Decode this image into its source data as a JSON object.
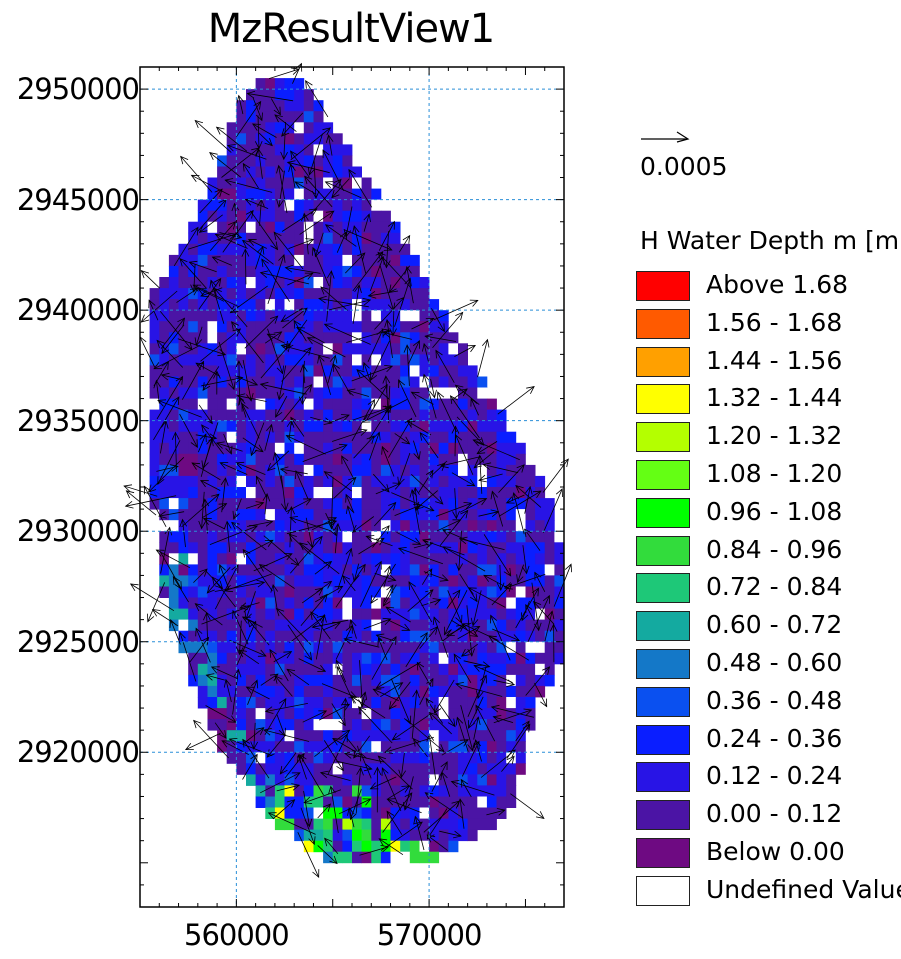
{
  "chart_data": {
    "type": "heatmap",
    "title": "MzResultView1",
    "xlabel": "",
    "ylabel": "",
    "xlim": [
      555000,
      577000
    ],
    "ylim": [
      2913000,
      2951000
    ],
    "x_ticks": [
      "560000",
      "570000"
    ],
    "y_ticks": [
      "2950000",
      "2945000",
      "2940000",
      "2935000",
      "2930000",
      "2925000",
      "2920000"
    ],
    "grid": true,
    "vector_scale_label": "0.0005",
    "legend_title": "H Water Depth m [m]",
    "legend_placement": "right",
    "legend": [
      {
        "label": "Above 1.68",
        "color": "#ff0000"
      },
      {
        "label": "1.56 - 1.68",
        "color": "#ff5a00"
      },
      {
        "label": "1.44 - 1.56",
        "color": "#ffa000"
      },
      {
        "label": "1.32 - 1.44",
        "color": "#ffff00"
      },
      {
        "label": "1.20 - 1.32",
        "color": "#b4ff00"
      },
      {
        "label": "1.08 - 1.20",
        "color": "#64ff14"
      },
      {
        "label": "0.96 - 1.08",
        "color": "#00ff00"
      },
      {
        "label": "0.84 - 0.96",
        "color": "#32dc3c"
      },
      {
        "label": "0.72 - 0.84",
        "color": "#1ec878"
      },
      {
        "label": "0.60 - 0.72",
        "color": "#14aaa0"
      },
      {
        "label": "0.48 - 0.60",
        "color": "#1478c8"
      },
      {
        "label": "0.36 - 0.48",
        "color": "#0a50f0"
      },
      {
        "label": "0.24 - 0.36",
        "color": "#0a1eff"
      },
      {
        "label": "0.12 - 0.24",
        "color": "#2814e6"
      },
      {
        "label": "0.00 - 0.12",
        "color": "#4b14a5"
      },
      {
        "label": "Below 0.00",
        "color": "#6e0a82"
      },
      {
        "label": "Undefined Value",
        "color": "#ffffff"
      }
    ],
    "domain_outline_yx": [
      [
        2950500,
        561500,
        563000
      ],
      [
        2949000,
        560000,
        564500
      ],
      [
        2947000,
        559300,
        566000
      ],
      [
        2945000,
        558300,
        567500
      ],
      [
        2943000,
        557200,
        568800
      ],
      [
        2941000,
        555700,
        570000
      ],
      [
        2938000,
        555600,
        572000
      ],
      [
        2935000,
        555600,
        574000
      ],
      [
        2932000,
        555700,
        576000
      ],
      [
        2929000,
        555900,
        577000
      ],
      [
        2926500,
        556300,
        577000
      ],
      [
        2924000,
        557400,
        576800
      ],
      [
        2922000,
        558300,
        575500
      ],
      [
        2920000,
        559300,
        575000
      ],
      [
        2918000,
        561000,
        574500
      ],
      [
        2916500,
        562500,
        573000
      ],
      [
        2915500,
        564000,
        571000
      ],
      [
        2914800,
        566000,
        569500
      ]
    ]
  }
}
